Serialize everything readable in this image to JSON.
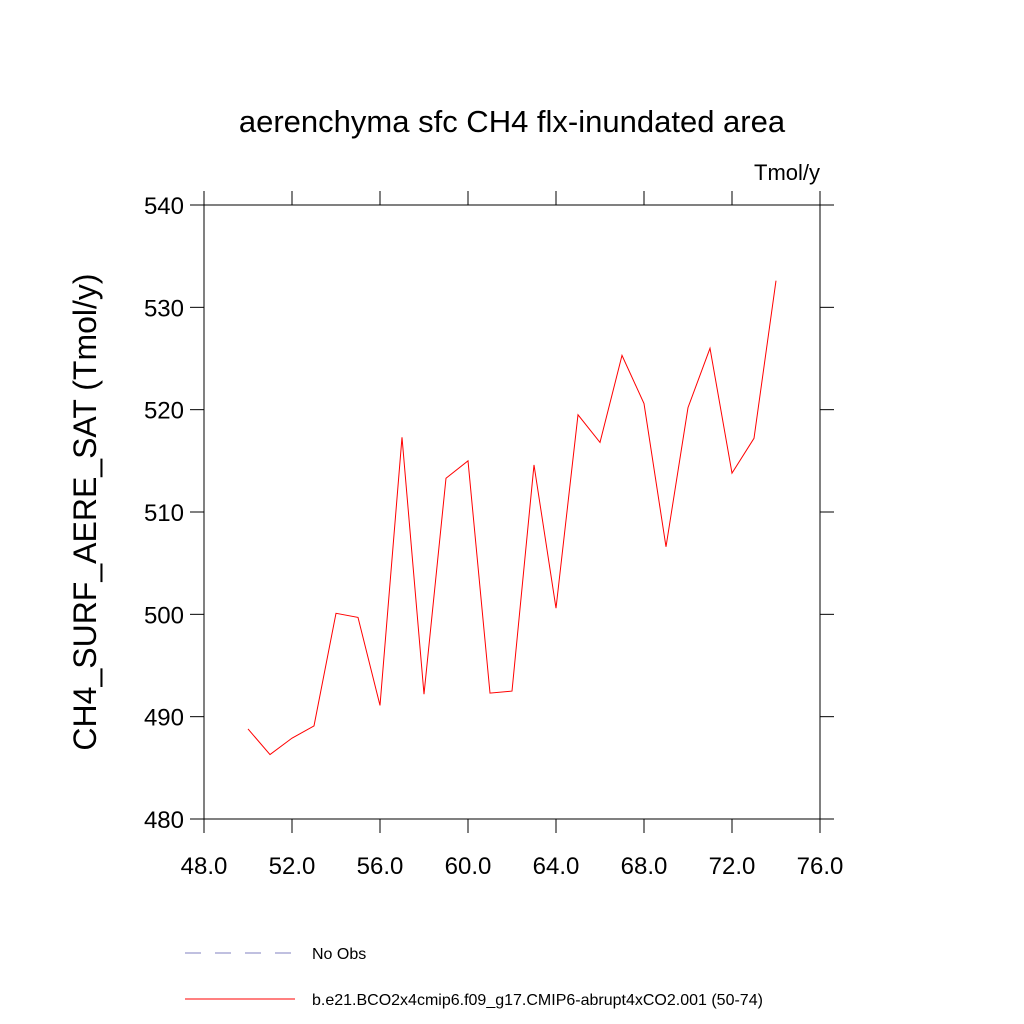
{
  "chart_data": {
    "type": "line",
    "title": "aerenchyma sfc CH4 flx-inundated area",
    "units_label": "Tmol/y",
    "y_label": "CH4_SURF_AERE_SAT  (Tmol/y)",
    "x": [
      50,
      51,
      52,
      53,
      54,
      55,
      56,
      57,
      58,
      59,
      60,
      61,
      62,
      63,
      64,
      65,
      66,
      67,
      68,
      69,
      70,
      71,
      72,
      73,
      74
    ],
    "series": [
      {
        "name": "b.e21.BCO2x4cmip6.f09_g17.CMIP6-abrupt4xCO2.001 (50-74)",
        "color": "#ff0000",
        "values": [
          488.8,
          486.3,
          487.9,
          489.1,
          500.1,
          499.7,
          491.1,
          517.3,
          492.2,
          513.3,
          515.0,
          492.3,
          492.5,
          514.6,
          500.6,
          519.5,
          516.8,
          525.3,
          520.6,
          506.6,
          520.2,
          526.0,
          513.8,
          517.2,
          532.6
        ]
      }
    ],
    "extra_legend": [
      {
        "name": "No Obs",
        "color": "#8080c0",
        "style": "dashed"
      }
    ],
    "xlim": [
      48,
      76
    ],
    "xticks": [
      {
        "value": 48,
        "label": "48.0"
      },
      {
        "value": 52,
        "label": "52.0"
      },
      {
        "value": 56,
        "label": "56.0"
      },
      {
        "value": 60,
        "label": "60.0"
      },
      {
        "value": 64,
        "label": "64.0"
      },
      {
        "value": 68,
        "label": "68.0"
      },
      {
        "value": 72,
        "label": "72.0"
      },
      {
        "value": 76,
        "label": "76.0"
      }
    ],
    "ylim": [
      480,
      540
    ],
    "yticks": [
      480,
      490,
      500,
      510,
      520,
      530,
      540
    ],
    "grid": false
  }
}
